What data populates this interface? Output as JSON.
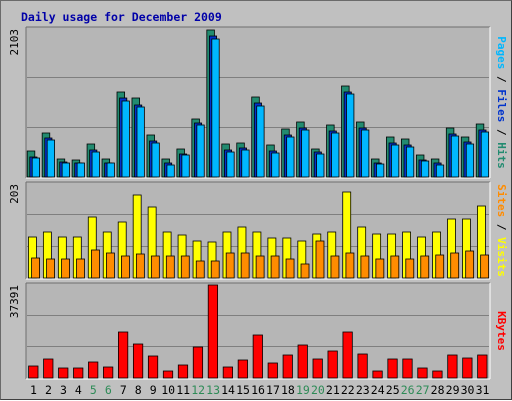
{
  "title": "Daily usage for December 2009",
  "colors": {
    "background": "#c0c0c0",
    "panel": "#b6b6b6",
    "grid": "#7f7f7f",
    "title": "#0000a8",
    "hits": "#228b70",
    "files": "#0033cc",
    "pages": "#00b7ff",
    "visits": "#ffff00",
    "sites": "#ff8c00",
    "kbytes": "#ff0000",
    "weekday_label": "#000000",
    "weekend_label": "#2e8b57",
    "separator": "#000000"
  },
  "chart_data": [
    {
      "type": "bar",
      "name": "hits-files-pages",
      "categories": [
        "1",
        "2",
        "3",
        "4",
        "5",
        "6",
        "7",
        "8",
        "9",
        "10",
        "11",
        "12",
        "13",
        "14",
        "15",
        "16",
        "17",
        "18",
        "19",
        "20",
        "21",
        "22",
        "23",
        "24",
        "25",
        "26",
        "27",
        "28",
        "29",
        "30",
        "31"
      ],
      "weekend_days": [
        5,
        6,
        12,
        13,
        19,
        20,
        26,
        27
      ],
      "ymax_label": "2103",
      "ylim": [
        0,
        2103
      ],
      "grid_fractions": [
        0.333,
        0.667
      ],
      "right_label": {
        "parts": [
          "Pages",
          " / ",
          "Files",
          " / ",
          "Hits"
        ],
        "part_colors": [
          "#00b7ff",
          "#000000",
          "#0033cc",
          "#000000",
          "#228b70"
        ]
      },
      "series": [
        {
          "name": "Hits",
          "values": [
            369,
            627,
            258,
            244,
            474,
            258,
            1205,
            1116,
            593,
            258,
            401,
            830,
            2093,
            467,
            483,
            1133,
            455,
            683,
            787,
            401,
            745,
            1289,
            777,
            258,
            574,
            542,
            311,
            258,
            703,
            567,
            749
          ]
        },
        {
          "name": "Files",
          "values": [
            285,
            558,
            215,
            201,
            388,
            201,
            1119,
            1030,
            507,
            201,
            332,
            772,
            2003,
            386,
            412,
            1048,
            374,
            597,
            701,
            357,
            659,
            1204,
            692,
            201,
            488,
            456,
            240,
            201,
            617,
            496,
            663
          ]
        },
        {
          "name": "Pages",
          "values": [
            271,
            523,
            201,
            201,
            358,
            201,
            1076,
            988,
            478,
            172,
            315,
            743,
            1960,
            358,
            384,
            1010,
            345,
            567,
            671,
            327,
            630,
            1175,
            663,
            187,
            459,
            427,
            226,
            172,
            588,
            467,
            634
          ]
        }
      ]
    },
    {
      "type": "bar",
      "name": "visits-sites",
      "categories": [
        "1",
        "2",
        "3",
        "4",
        "5",
        "6",
        "7",
        "8",
        "9",
        "10",
        "11",
        "12",
        "13",
        "14",
        "15",
        "16",
        "17",
        "18",
        "19",
        "20",
        "21",
        "22",
        "23",
        "24",
        "25",
        "26",
        "27",
        "28",
        "29",
        "30",
        "31"
      ],
      "ymax_label": "203",
      "ylim": [
        0,
        203
      ],
      "grid_fractions": [
        0.333,
        0.667
      ],
      "right_label": {
        "parts": [
          "Sites",
          " / ",
          "Visits"
        ],
        "part_colors": [
          "#ff8c00",
          "#000000",
          "#ffff00"
        ]
      },
      "series": [
        {
          "name": "Visits",
          "values": [
            89,
            100,
            89,
            89,
            131,
            100,
            121,
            180,
            153,
            100,
            93,
            80,
            78,
            100,
            111,
            100,
            86,
            86,
            80,
            96,
            100,
            186,
            110,
            95,
            95,
            100,
            89,
            100,
            128,
            128,
            155
          ]
        },
        {
          "name": "Sites",
          "values": [
            44,
            42,
            40,
            42,
            61,
            53,
            48,
            51,
            48,
            48,
            48,
            36,
            36,
            54,
            53,
            48,
            48,
            42,
            30,
            79,
            48,
            54,
            48,
            42,
            48,
            42,
            48,
            50,
            54,
            58,
            50
          ]
        }
      ]
    },
    {
      "type": "bar",
      "name": "kbytes",
      "categories": [
        "1",
        "2",
        "3",
        "4",
        "5",
        "6",
        "7",
        "8",
        "9",
        "10",
        "11",
        "12",
        "13",
        "14",
        "15",
        "16",
        "17",
        "18",
        "19",
        "20",
        "21",
        "22",
        "23",
        "24",
        "25",
        "26",
        "27",
        "28",
        "29",
        "30",
        "31"
      ],
      "ymax_label": "37391",
      "ylim": [
        0,
        37391
      ],
      "grid_fractions": [
        0.333,
        0.667
      ],
      "right_label": {
        "parts": [
          "KBytes"
        ],
        "part_colors": [
          "#ff0000"
        ]
      },
      "series": [
        {
          "name": "KBytes",
          "values": [
            4825,
            7520,
            3830,
            3830,
            6425,
            4390,
            18660,
            13530,
            8840,
            2820,
            5150,
            12530,
            37391,
            4390,
            7080,
            17260,
            6000,
            9050,
            13400,
            7520,
            10690,
            18660,
            9790,
            2820,
            7520,
            7520,
            3830,
            2820,
            9430,
            7990,
            9430
          ]
        }
      ]
    }
  ]
}
